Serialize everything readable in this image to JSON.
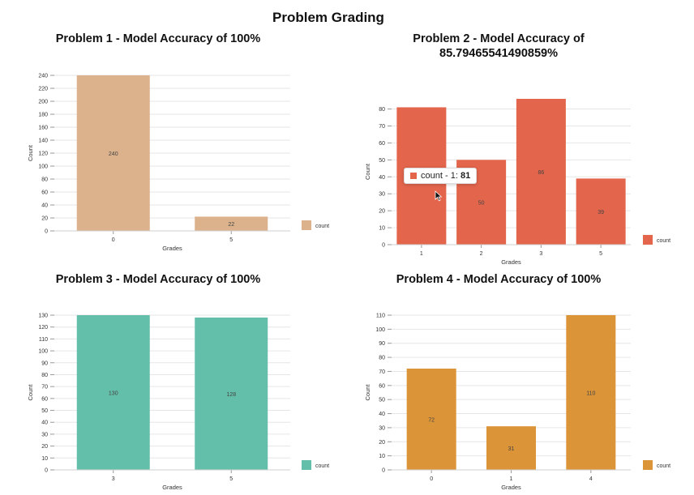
{
  "page_title": "Problem Grading",
  "tooltip": {
    "series": "count",
    "prefix": " - ",
    "category": "1",
    "sep": ": ",
    "value": "81"
  },
  "chart_data": [
    {
      "type": "bar",
      "title": "Problem 1 - Model Accuracy of 100%",
      "title_lines": [
        "Problem 1 - Model Accuracy of 100%"
      ],
      "xlabel": "Grades",
      "ylabel": "Count",
      "categories": [
        "0",
        "5"
      ],
      "series": [
        {
          "name": "count",
          "values": [
            240,
            22
          ]
        }
      ],
      "ylim": [
        0,
        240
      ],
      "yticks": [
        0,
        20,
        40,
        60,
        80,
        100,
        120,
        140,
        160,
        180,
        200,
        220,
        240
      ],
      "color": "#dcb28c",
      "legend": "right",
      "grid": true
    },
    {
      "type": "bar",
      "title": "Problem 2 - Model Accuracy of 85.79465541490859%",
      "title_lines": [
        "Problem 2 - Model Accuracy of",
        "85.79465541490859%"
      ],
      "xlabel": "Grades",
      "ylabel": "Count",
      "categories": [
        "1",
        "2",
        "3",
        "5"
      ],
      "series": [
        {
          "name": "count",
          "values": [
            81,
            50,
            86,
            39
          ]
        }
      ],
      "ylim": [
        0,
        86
      ],
      "yticks": [
        0,
        10,
        20,
        30,
        40,
        50,
        60,
        70,
        80
      ],
      "color": "#e3654c",
      "legend": "right",
      "grid": true
    },
    {
      "type": "bar",
      "title": "Problem 3 - Model Accuracy of 100%",
      "title_lines": [
        "Problem 3 - Model Accuracy of 100%"
      ],
      "xlabel": "Grades",
      "ylabel": "Count",
      "categories": [
        "3",
        "5"
      ],
      "series": [
        {
          "name": "count",
          "values": [
            130,
            128
          ]
        }
      ],
      "ylim": [
        0,
        130
      ],
      "yticks": [
        0,
        10,
        20,
        30,
        40,
        50,
        60,
        70,
        80,
        90,
        100,
        110,
        120,
        130
      ],
      "color": "#63bfaa",
      "legend": "right",
      "grid": true
    },
    {
      "type": "bar",
      "title": "Problem 4 - Model Accuracy of 100%",
      "title_lines": [
        "Problem 4 - Model Accuracy of 100%"
      ],
      "xlabel": "Grades",
      "ylabel": "Count",
      "categories": [
        "0",
        "1",
        "4"
      ],
      "series": [
        {
          "name": "count",
          "values": [
            72,
            31,
            110
          ]
        }
      ],
      "ylim": [
        0,
        110
      ],
      "yticks": [
        0,
        10,
        20,
        30,
        40,
        50,
        60,
        70,
        80,
        90,
        100,
        110
      ],
      "color": "#db9438",
      "legend": "right",
      "grid": true
    }
  ]
}
